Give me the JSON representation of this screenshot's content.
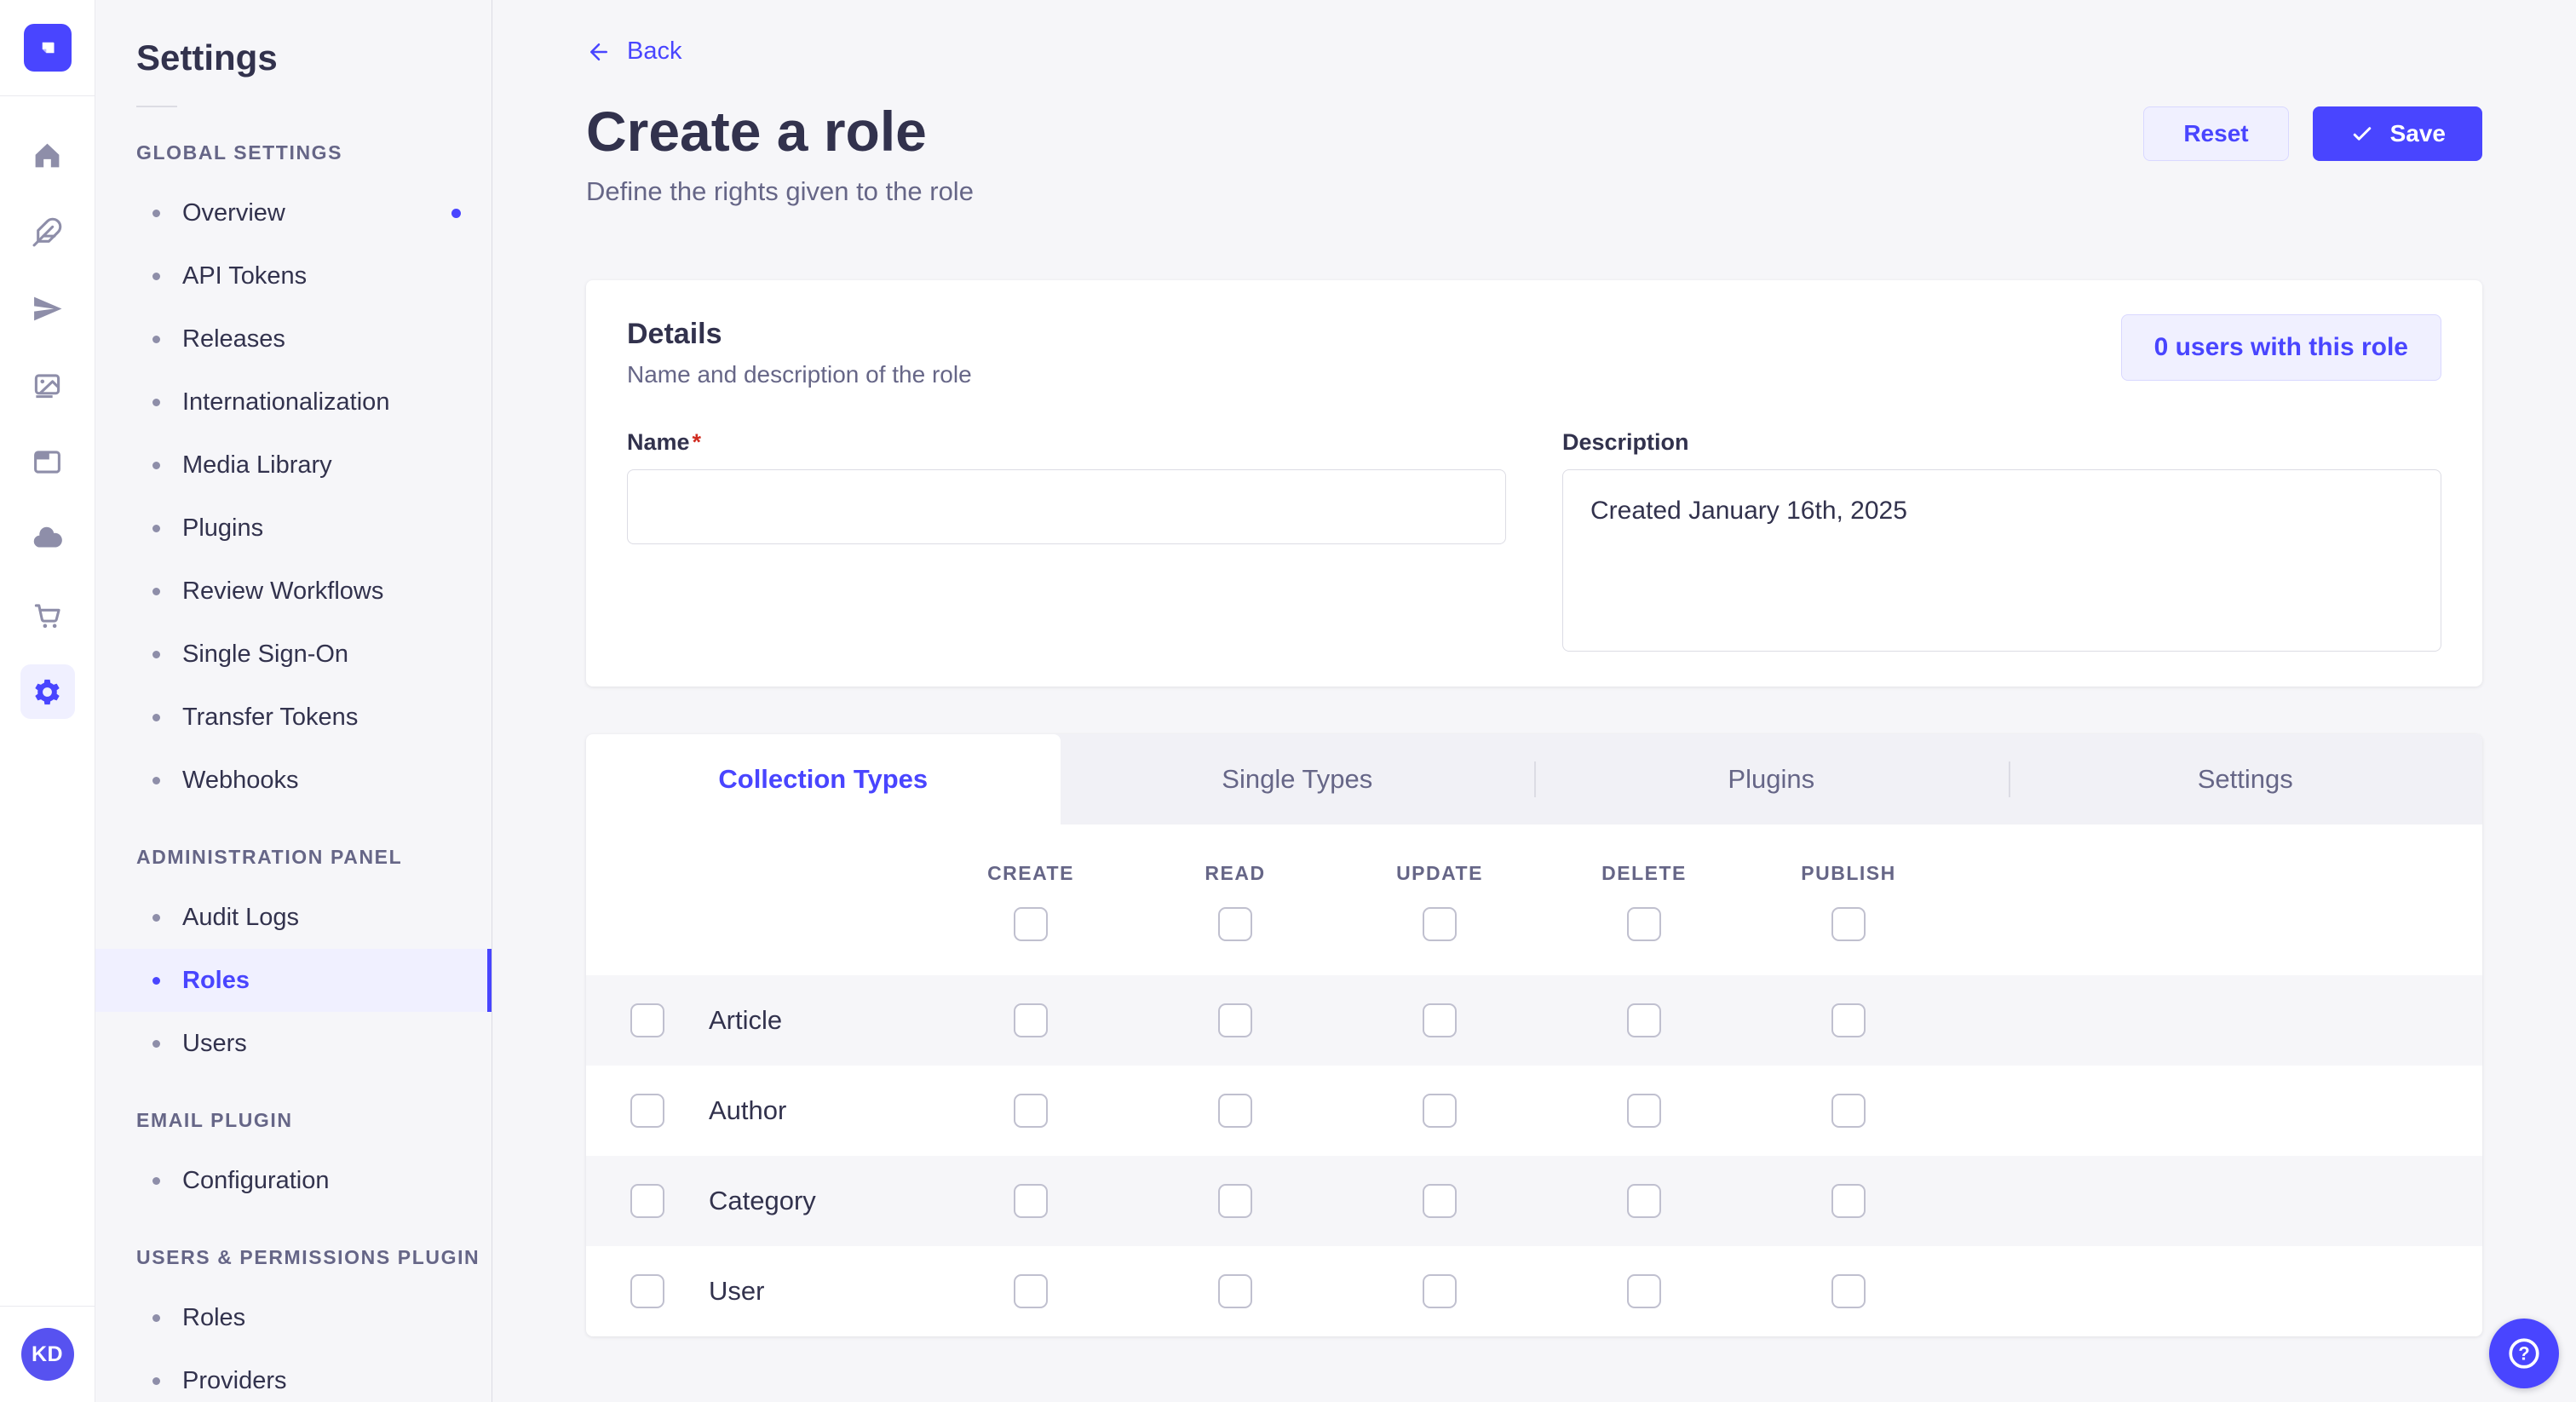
{
  "colors": {
    "primary": "#4945ff",
    "primary_light_bg": "#f0f0ff",
    "primary_border": "#d9d8ff",
    "text_dark": "#32324d",
    "text_muted": "#666687",
    "page_bg": "#f6f6f9",
    "neutral_border": "#dcdce4",
    "required_red": "#d02b20"
  },
  "rail": {
    "logo_icon": "strapi-logo-icon",
    "items": [
      {
        "icon": "home-icon",
        "active": false
      },
      {
        "icon": "feather-icon",
        "active": false
      },
      {
        "icon": "paper-plane-icon",
        "active": false
      },
      {
        "icon": "media-library-icon",
        "active": false
      },
      {
        "icon": "layout-icon",
        "active": false
      },
      {
        "icon": "cloud-icon",
        "active": false
      },
      {
        "icon": "cart-icon",
        "active": false
      },
      {
        "icon": "gear-icon",
        "active": true
      }
    ],
    "avatar_initials": "KD"
  },
  "sidebar": {
    "title": "Settings",
    "sections": [
      {
        "label": "GLOBAL SETTINGS",
        "items": [
          {
            "label": "Overview",
            "dot": true
          },
          {
            "label": "API Tokens"
          },
          {
            "label": "Releases"
          },
          {
            "label": "Internationalization"
          },
          {
            "label": "Media Library"
          },
          {
            "label": "Plugins"
          },
          {
            "label": "Review Workflows"
          },
          {
            "label": "Single Sign-On"
          },
          {
            "label": "Transfer Tokens"
          },
          {
            "label": "Webhooks"
          }
        ]
      },
      {
        "label": "ADMINISTRATION PANEL",
        "items": [
          {
            "label": "Audit Logs"
          },
          {
            "label": "Roles",
            "active": true
          },
          {
            "label": "Users"
          }
        ]
      },
      {
        "label": "EMAIL PLUGIN",
        "items": [
          {
            "label": "Configuration"
          }
        ]
      },
      {
        "label": "USERS & PERMISSIONS PLUGIN",
        "items": [
          {
            "label": "Roles"
          },
          {
            "label": "Providers"
          }
        ]
      }
    ]
  },
  "header": {
    "back_label": "Back",
    "title": "Create a role",
    "subtitle": "Define the rights given to the role",
    "reset_label": "Reset",
    "save_label": "Save"
  },
  "details": {
    "heading": "Details",
    "subheading": "Name and description of the role",
    "users_pill_label": "0 users with this role",
    "name_field": {
      "label": "Name",
      "required": true,
      "value": "",
      "placeholder": ""
    },
    "description_field": {
      "label": "Description",
      "value": "Created January 16th, 2025"
    }
  },
  "permissions": {
    "tabs": [
      {
        "label": "Collection Types",
        "active": true
      },
      {
        "label": "Single Types",
        "active": false
      },
      {
        "label": "Plugins",
        "active": false
      },
      {
        "label": "Settings",
        "active": false
      }
    ],
    "columns": [
      "CREATE",
      "READ",
      "UPDATE",
      "DELETE",
      "PUBLISH"
    ],
    "rows": [
      {
        "label": "Article",
        "checked": [
          false,
          false,
          false,
          false,
          false
        ]
      },
      {
        "label": "Author",
        "checked": [
          false,
          false,
          false,
          false,
          false
        ]
      },
      {
        "label": "Category",
        "checked": [
          false,
          false,
          false,
          false,
          false
        ]
      },
      {
        "label": "User",
        "checked": [
          false,
          false,
          false,
          false,
          false
        ]
      }
    ]
  },
  "fab": {
    "icon": "help-icon"
  }
}
